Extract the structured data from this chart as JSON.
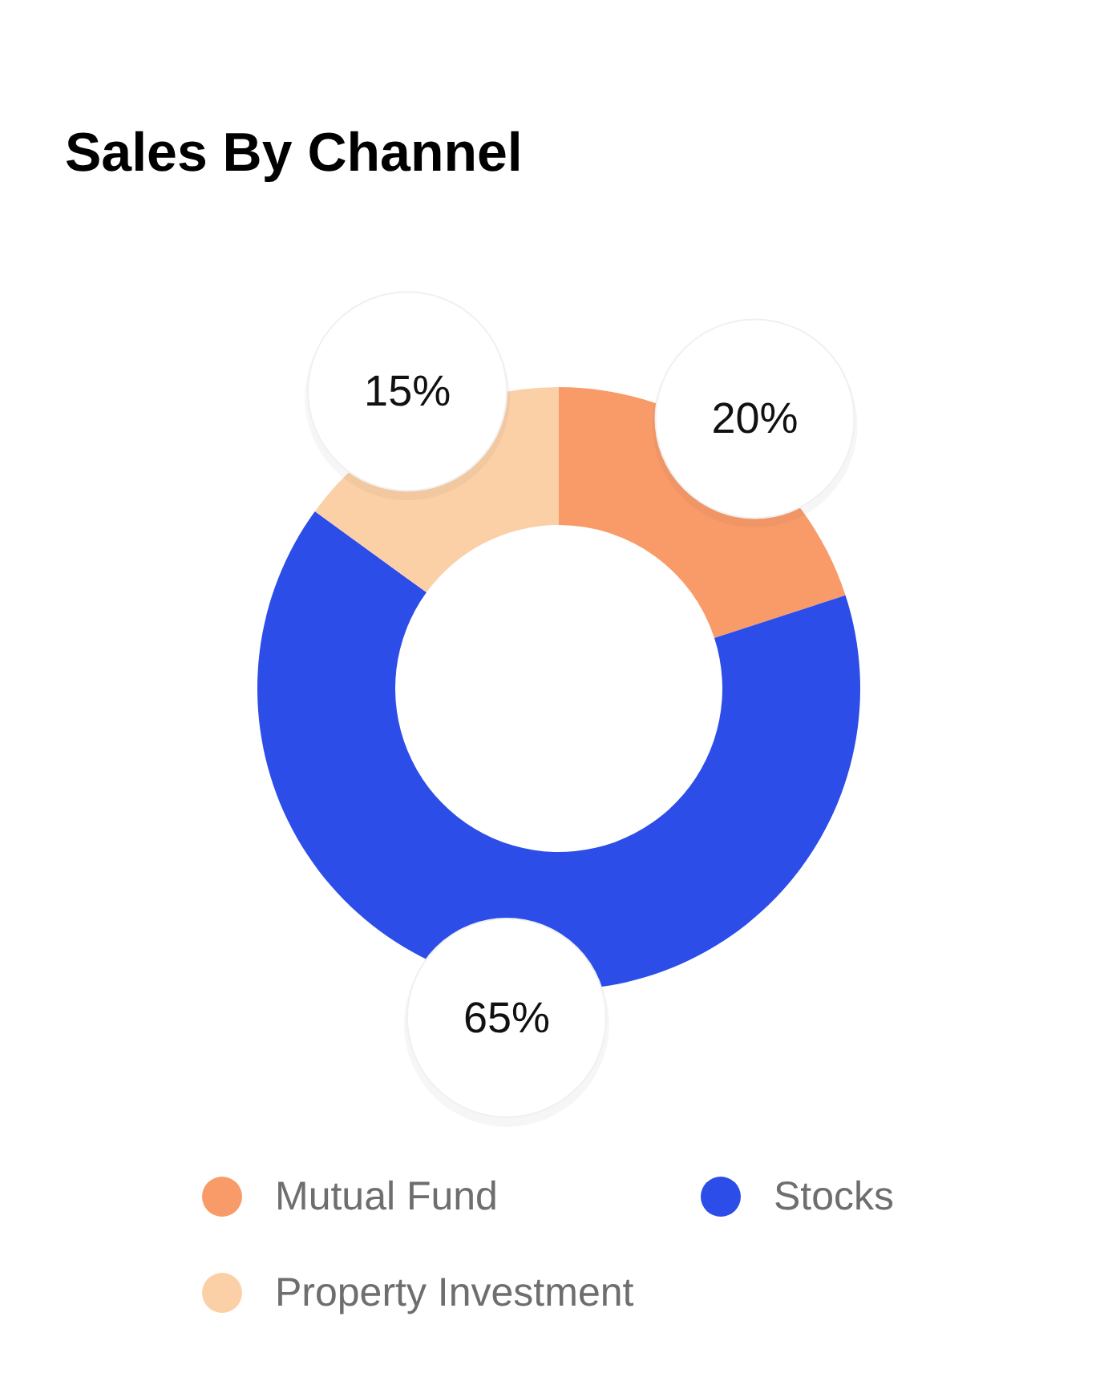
{
  "chart_data": {
    "type": "donut",
    "title": "Sales By Channel",
    "categories": [
      "Mutual Fund",
      "Stocks",
      "Property Investment"
    ],
    "values": [
      20,
      65,
      15
    ],
    "colors": [
      "#f99b69",
      "#2c4de8",
      "#fbd0a6"
    ],
    "value_labels": [
      "20%",
      "65%",
      "15%"
    ],
    "legend": "bottom"
  }
}
